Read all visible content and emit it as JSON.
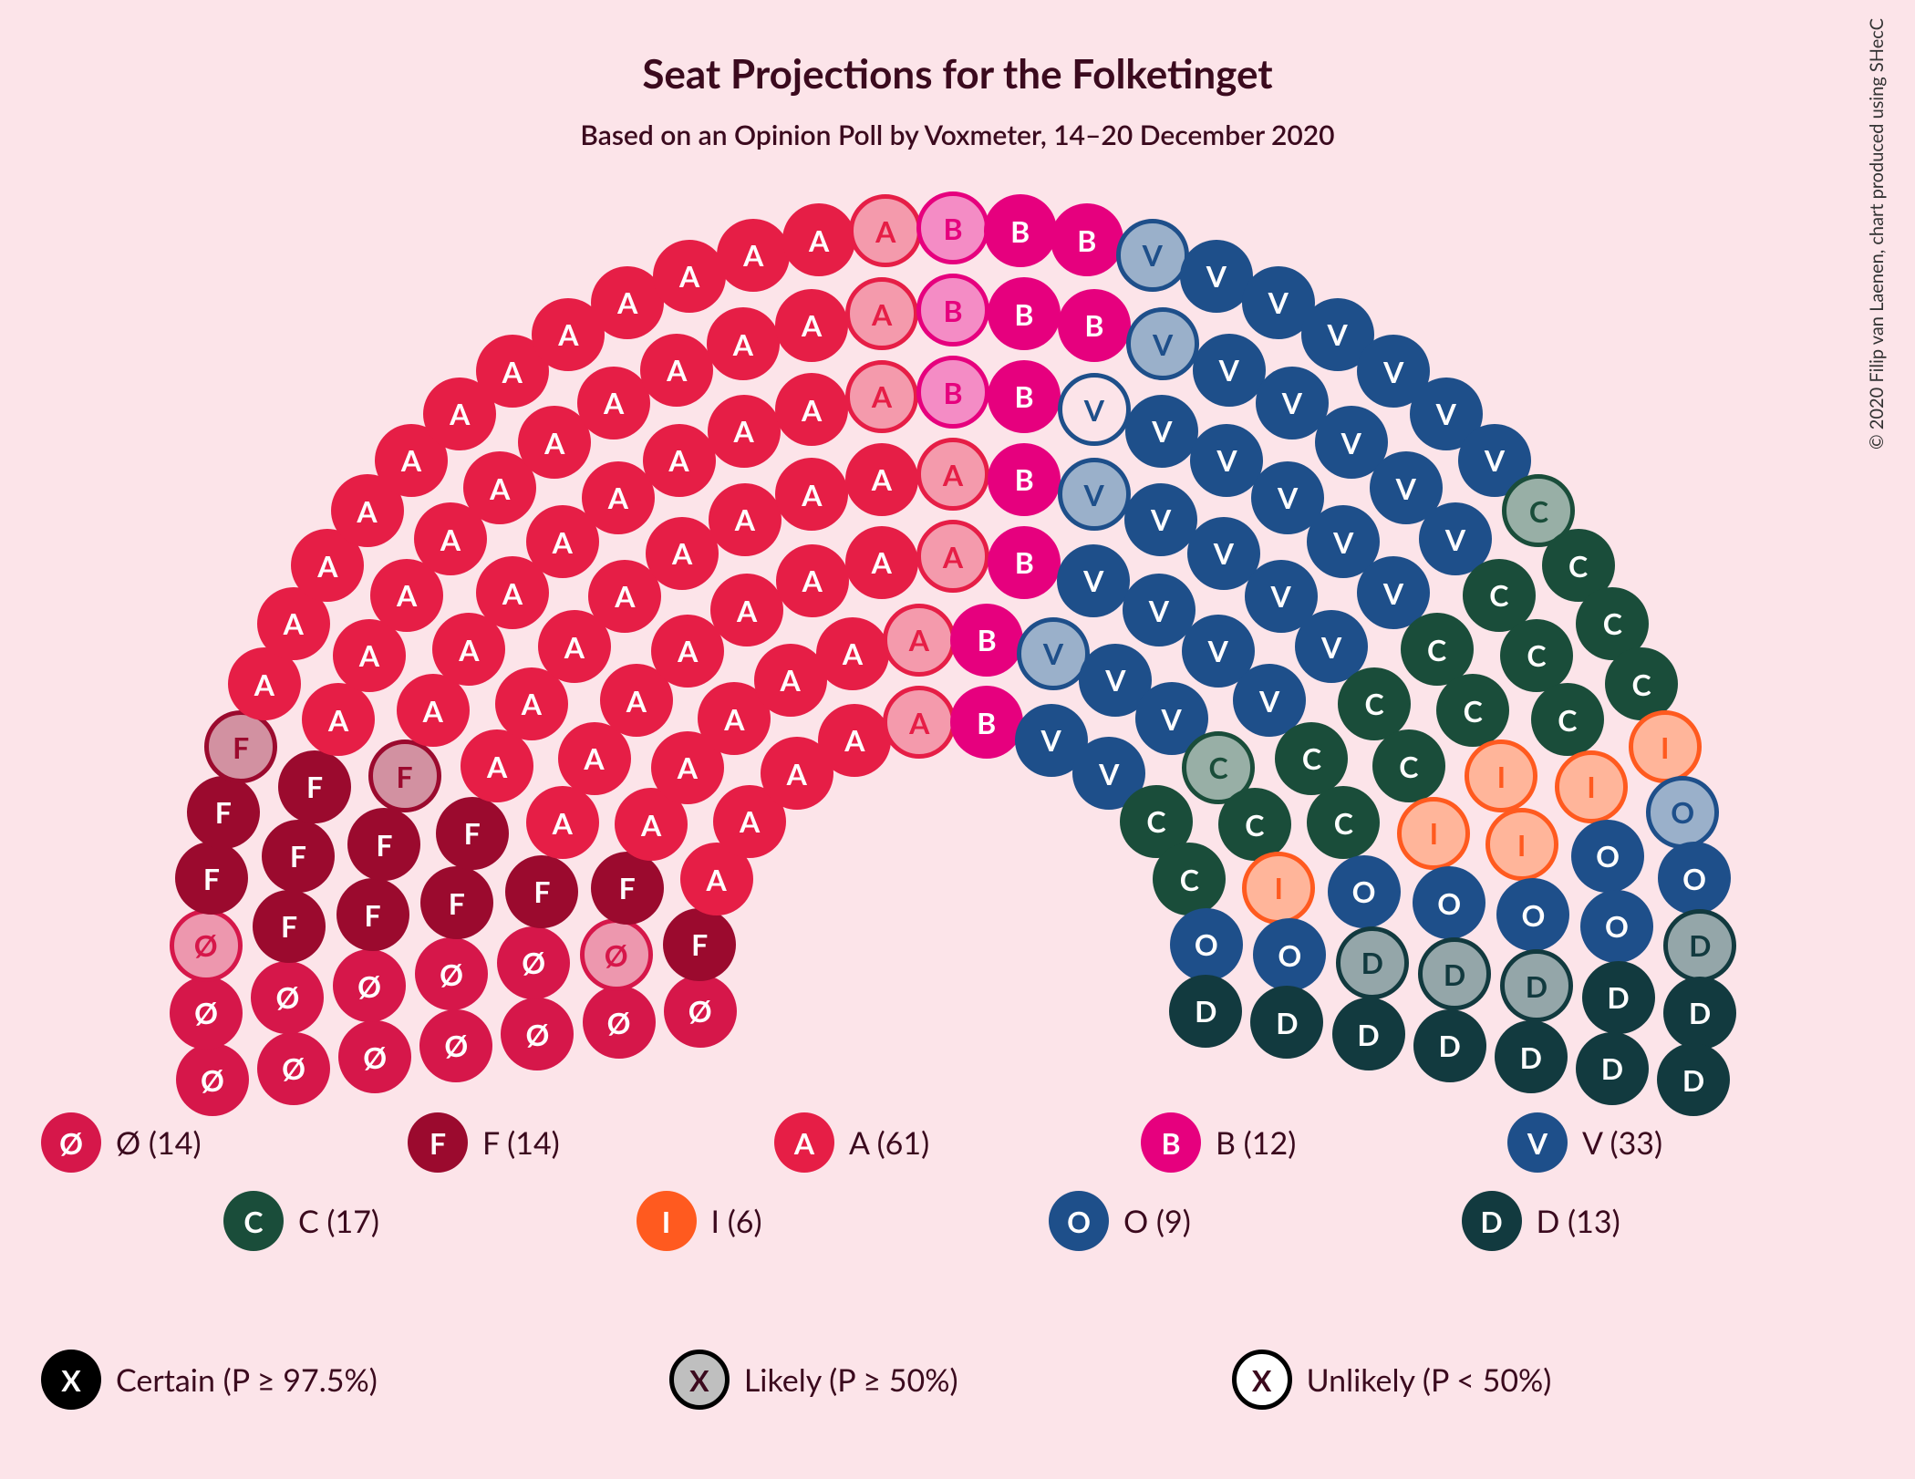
{
  "title": "Seat Projections for the Folketinget",
  "subtitle": "Based on an Opinion Poll by Voxmeter, 14–20 December 2020",
  "credit": "© 2020 Filip van Laenen, chart produced using SHecC",
  "background": "#fce4e9",
  "textColor": "#3b0a1e",
  "chart": {
    "type": "hemicycle",
    "totalSeats": 179,
    "seatRadius": 40,
    "seatFontSize": 32,
    "rings": [
      {
        "count": 14,
        "radius": 280
      },
      {
        "count": 18,
        "radius": 370
      },
      {
        "count": 21,
        "radius": 460
      },
      {
        "count": 25,
        "radius": 550
      },
      {
        "count": 29,
        "radius": 640
      },
      {
        "count": 33,
        "radius": 730
      },
      {
        "count": 39,
        "radius": 820
      }
    ],
    "centerX": 1000,
    "centerY": 870,
    "angleStart": 188,
    "angleEnd": -8
  },
  "parties": [
    {
      "id": "O_slash",
      "letter": "Ø",
      "color": "#d6174a",
      "textColor": "#ffffff",
      "count": 14
    },
    {
      "id": "F",
      "letter": "F",
      "color": "#9b0a2e",
      "textColor": "#ffffff",
      "count": 14
    },
    {
      "id": "A",
      "letter": "A",
      "color": "#e61e46",
      "textColor": "#ffffff",
      "count": 61
    },
    {
      "id": "B",
      "letter": "B",
      "color": "#e6007e",
      "textColor": "#ffffff",
      "count": 12
    },
    {
      "id": "V",
      "letter": "V",
      "color": "#1e4f8a",
      "textColor": "#ffffff",
      "count": 33
    },
    {
      "id": "C",
      "letter": "C",
      "color": "#1a4d3a",
      "textColor": "#ffffff",
      "count": 17
    },
    {
      "id": "I",
      "letter": "I",
      "color": "#ff5a1f",
      "textColor": "#ffffff",
      "count": 6
    },
    {
      "id": "O_party",
      "letter": "O",
      "color": "#1e4f8a",
      "textColor": "#ffffff",
      "count": 9
    },
    {
      "id": "D",
      "letter": "D",
      "color": "#123a3f",
      "textColor": "#ffffff",
      "count": 13
    }
  ],
  "probability": {
    "likelyFill": "#bfbfbf",
    "unlikelyFill": "#ffffff",
    "borderWidth": 5
  },
  "seatOrder": [
    "O_slash",
    "O_slash",
    "O_slash",
    "O_slash",
    "O_slash",
    "O_slash",
    "O_slash",
    "O_slash",
    "O_slash",
    "O_slash",
    "O_slash",
    "O_slash",
    "O_slash:likely",
    "O_slash:likely",
    "F",
    "F",
    "F",
    "F",
    "F",
    "F",
    "F",
    "F",
    "F",
    "F",
    "F",
    "F",
    "F:likely",
    "F:likely",
    "A",
    "A",
    "A",
    "A",
    "A",
    "A",
    "A",
    "A",
    "A",
    "A",
    "A",
    "A",
    "A",
    "A",
    "A",
    "A",
    "A",
    "A",
    "A",
    "A",
    "A",
    "A",
    "A",
    "A",
    "A",
    "A",
    "A",
    "A",
    "A",
    "A",
    "A",
    "A",
    "A",
    "A",
    "A",
    "A",
    "A",
    "A",
    "A",
    "A",
    "A",
    "A",
    "A",
    "A",
    "A",
    "A",
    "A",
    "A",
    "A",
    "A",
    "A",
    "A",
    "A",
    "A",
    "A:likely",
    "A:likely",
    "A:likely",
    "A:likely",
    "A:likely",
    "A:likely",
    "A:likely",
    "B:likely",
    "B:likely",
    "B:likely",
    "B",
    "B",
    "B",
    "B",
    "B",
    "B",
    "B",
    "B",
    "B",
    "V:unlikely",
    "V:likely",
    "V:likely",
    "V:likely",
    "V:likely",
    "V",
    "V",
    "V",
    "V",
    "V",
    "V",
    "V",
    "V",
    "V",
    "V",
    "V",
    "V",
    "V",
    "V",
    "V",
    "V",
    "V",
    "V",
    "V",
    "V",
    "V",
    "V",
    "V",
    "V",
    "V",
    "V",
    "V",
    "V",
    "C:likely",
    "C:likely",
    "C",
    "C",
    "C",
    "C",
    "C",
    "C",
    "C",
    "C",
    "C",
    "C",
    "C",
    "C",
    "C",
    "C",
    "C",
    "I:likely",
    "I:likely",
    "I:likely",
    "I:likely",
    "I:likely",
    "I:likely",
    "O_party:likely",
    "O_party",
    "O_party",
    "O_party",
    "O_party",
    "O_party",
    "O_party",
    "O_party",
    "O_party",
    "D:likely",
    "D:likely",
    "D:likely",
    "D:likely",
    "D",
    "D",
    "D",
    "D",
    "D",
    "D",
    "D",
    "D",
    "D"
  ],
  "legend": {
    "row1": [
      {
        "party": "O_slash",
        "label": "Ø (14)"
      },
      {
        "party": "F",
        "label": "F (14)"
      },
      {
        "party": "A",
        "label": "A (61)"
      },
      {
        "party": "B",
        "label": "B (12)"
      },
      {
        "party": "V",
        "label": "V (33)"
      }
    ],
    "row2": [
      {
        "party": "C",
        "label": "C (17)"
      },
      {
        "party": "I",
        "label": "I (6)"
      },
      {
        "party": "O_party",
        "label": "O (9)"
      },
      {
        "party": "D",
        "label": "D (13)"
      }
    ]
  },
  "probLegend": [
    {
      "type": "certain",
      "label": "Certain (P ≥ 97.5%)",
      "fill": "#000000",
      "textColor": "#ffffff"
    },
    {
      "type": "likely",
      "label": "Likely (P ≥ 50%)",
      "fill": "#bfbfbf",
      "border": "#000000",
      "textColor": "#3b0a1e"
    },
    {
      "type": "unlikely",
      "label": "Unlikely (P < 50%)",
      "fill": "#ffffff",
      "border": "#000000",
      "textColor": "#3b0a1e"
    }
  ]
}
